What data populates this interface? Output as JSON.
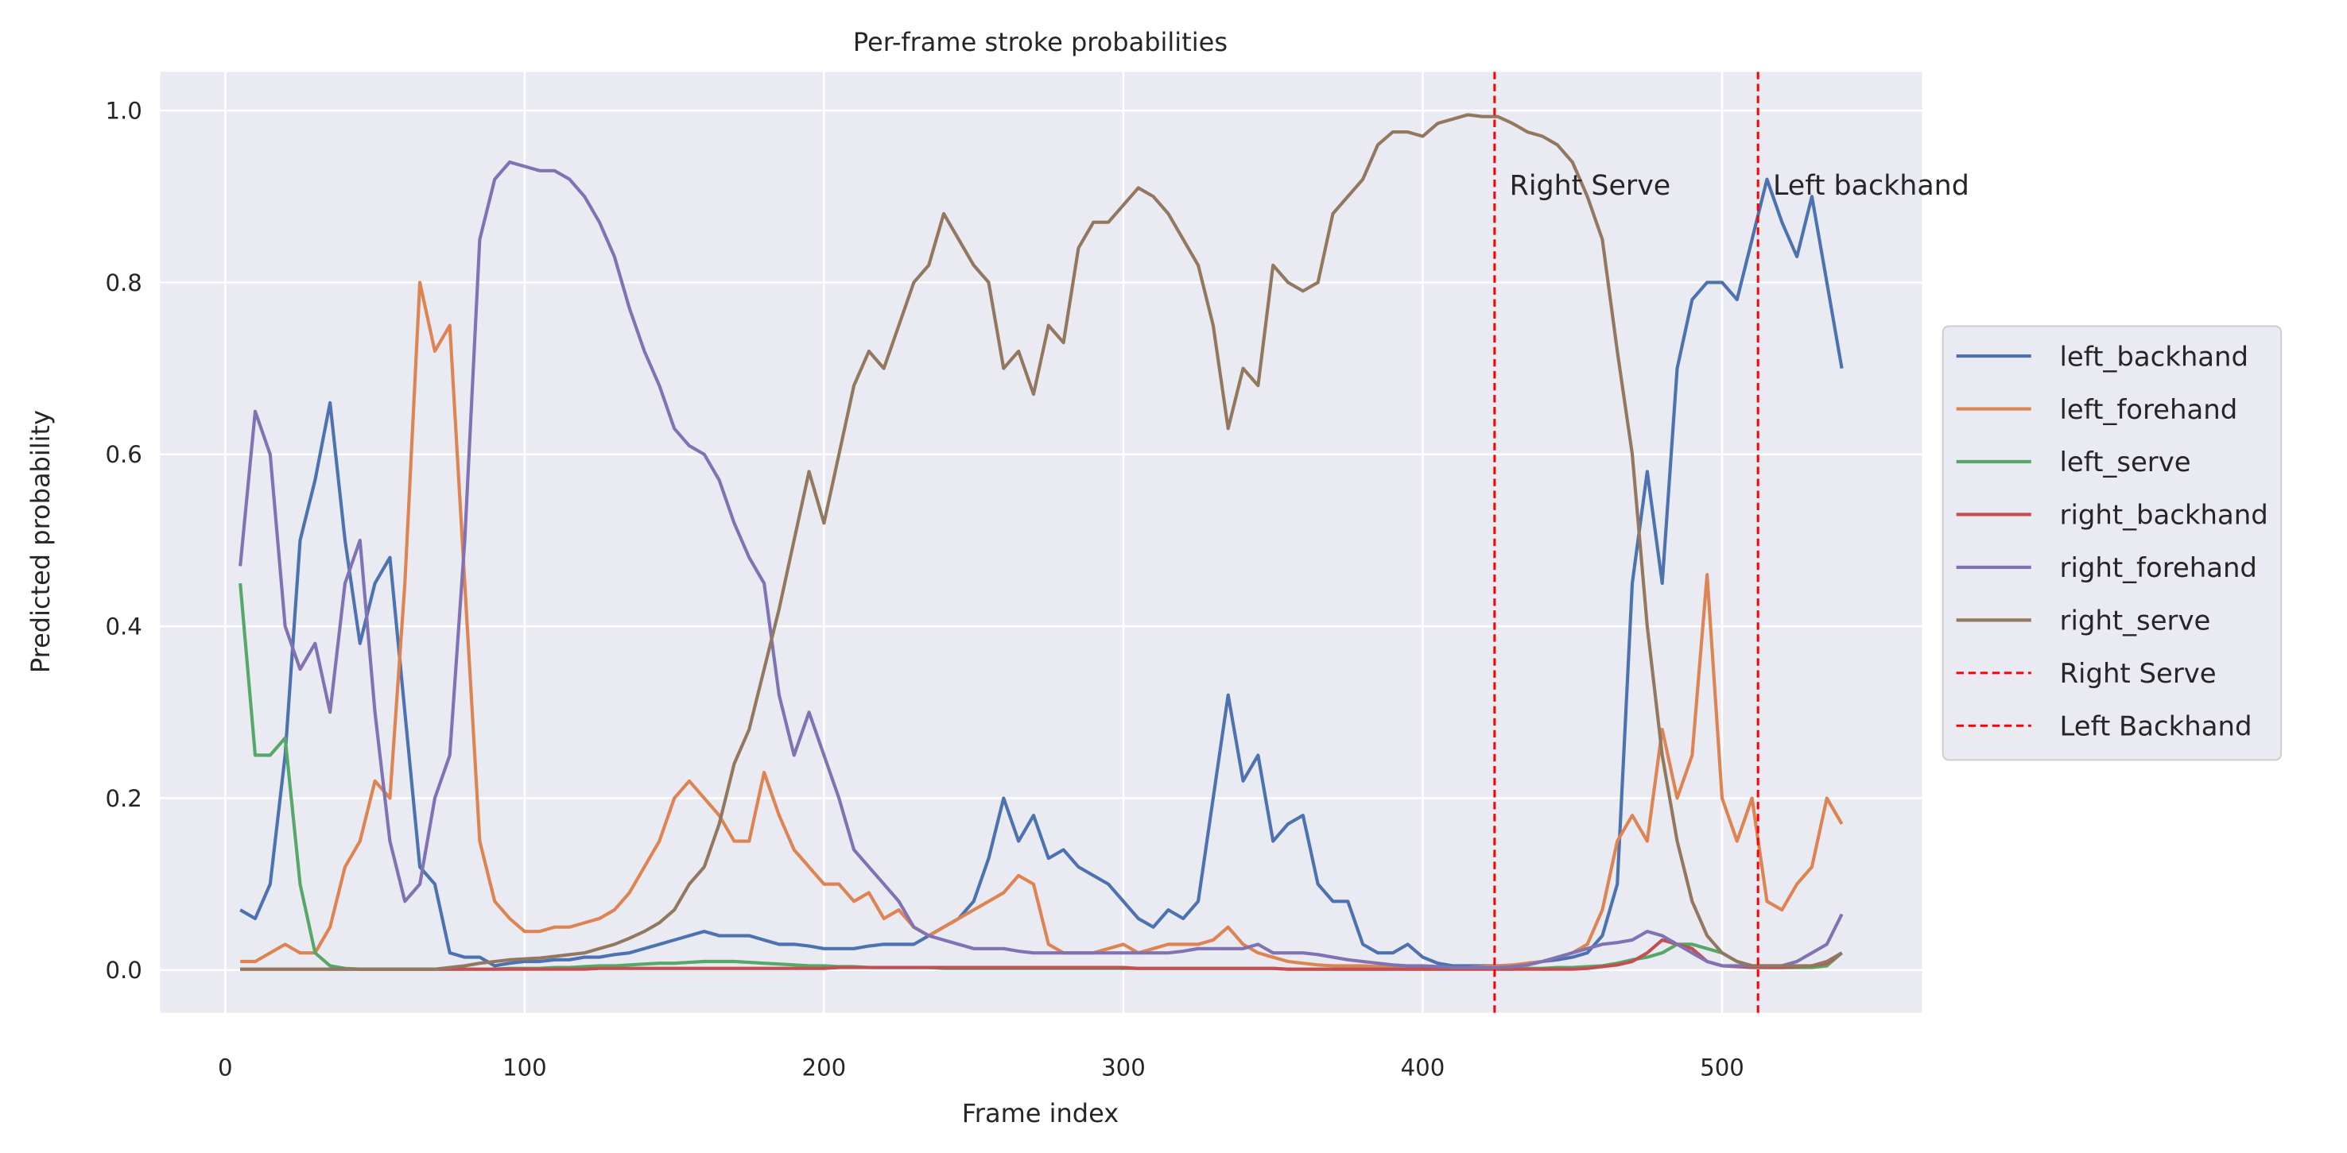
{
  "chart_data": {
    "type": "line",
    "title": "Per-frame stroke probabilities",
    "x_label": "Frame index",
    "y_label": "Predicted probability",
    "x": [
      5,
      10,
      15,
      20,
      25,
      30,
      35,
      40,
      45,
      50,
      55,
      60,
      65,
      70,
      75,
      80,
      85,
      90,
      95,
      100,
      105,
      110,
      115,
      120,
      125,
      130,
      135,
      140,
      145,
      150,
      155,
      160,
      165,
      170,
      175,
      180,
      185,
      190,
      195,
      200,
      205,
      210,
      215,
      220,
      225,
      230,
      235,
      240,
      245,
      250,
      255,
      260,
      265,
      270,
      275,
      280,
      285,
      290,
      295,
      300,
      305,
      310,
      315,
      320,
      325,
      330,
      335,
      340,
      345,
      350,
      355,
      360,
      365,
      370,
      375,
      380,
      385,
      390,
      395,
      400,
      405,
      410,
      415,
      420,
      425,
      430,
      435,
      440,
      445,
      450,
      455,
      460,
      465,
      470,
      475,
      480,
      485,
      490,
      495,
      500,
      505,
      510,
      515,
      520,
      525,
      530,
      535,
      540
    ],
    "series": [
      {
        "name": "left_backhand",
        "color": "#4c72b0",
        "values": [
          0.07,
          0.06,
          0.1,
          0.25,
          0.5,
          0.57,
          0.66,
          0.5,
          0.38,
          0.45,
          0.48,
          0.3,
          0.12,
          0.1,
          0.02,
          0.015,
          0.015,
          0.005,
          0.008,
          0.01,
          0.01,
          0.012,
          0.012,
          0.015,
          0.015,
          0.018,
          0.02,
          0.025,
          0.03,
          0.035,
          0.04,
          0.045,
          0.04,
          0.04,
          0.04,
          0.035,
          0.03,
          0.03,
          0.028,
          0.025,
          0.025,
          0.025,
          0.028,
          0.03,
          0.03,
          0.03,
          0.04,
          0.05,
          0.06,
          0.08,
          0.13,
          0.2,
          0.15,
          0.18,
          0.13,
          0.14,
          0.12,
          0.11,
          0.1,
          0.08,
          0.06,
          0.05,
          0.07,
          0.06,
          0.08,
          0.2,
          0.32,
          0.22,
          0.25,
          0.15,
          0.17,
          0.18,
          0.1,
          0.08,
          0.08,
          0.03,
          0.02,
          0.02,
          0.03,
          0.015,
          0.008,
          0.005,
          0.005,
          0.005,
          0.005,
          0.005,
          0.008,
          0.01,
          0.012,
          0.015,
          0.02,
          0.04,
          0.1,
          0.45,
          0.58,
          0.45,
          0.7,
          0.78,
          0.8,
          0.8,
          0.78,
          0.85,
          0.92,
          0.87,
          0.83,
          0.9,
          0.8,
          0.7
        ]
      },
      {
        "name": "left_forehand",
        "color": "#dd8452",
        "values": [
          0.01,
          0.01,
          0.02,
          0.03,
          0.02,
          0.02,
          0.05,
          0.12,
          0.15,
          0.22,
          0.2,
          0.45,
          0.8,
          0.72,
          0.75,
          0.45,
          0.15,
          0.08,
          0.06,
          0.045,
          0.045,
          0.05,
          0.05,
          0.055,
          0.06,
          0.07,
          0.09,
          0.12,
          0.15,
          0.2,
          0.22,
          0.2,
          0.18,
          0.15,
          0.15,
          0.23,
          0.18,
          0.14,
          0.12,
          0.1,
          0.1,
          0.08,
          0.09,
          0.06,
          0.07,
          0.05,
          0.04,
          0.05,
          0.06,
          0.07,
          0.08,
          0.09,
          0.11,
          0.1,
          0.03,
          0.02,
          0.02,
          0.02,
          0.025,
          0.03,
          0.02,
          0.025,
          0.03,
          0.03,
          0.03,
          0.035,
          0.05,
          0.03,
          0.02,
          0.015,
          0.01,
          0.008,
          0.006,
          0.005,
          0.005,
          0.005,
          0.004,
          0.004,
          0.004,
          0.004,
          0.003,
          0.003,
          0.003,
          0.004,
          0.005,
          0.006,
          0.008,
          0.01,
          0.015,
          0.02,
          0.03,
          0.07,
          0.15,
          0.18,
          0.15,
          0.28,
          0.2,
          0.25,
          0.46,
          0.2,
          0.15,
          0.2,
          0.08,
          0.07,
          0.1,
          0.12,
          0.2,
          0.17
        ]
      },
      {
        "name": "left_serve",
        "color": "#55a868",
        "values": [
          0.45,
          0.25,
          0.25,
          0.27,
          0.1,
          0.02,
          0.005,
          0.002,
          0.001,
          0.001,
          0.001,
          0.001,
          0.001,
          0.001,
          0.001,
          0.001,
          0.001,
          0.001,
          0.002,
          0.002,
          0.002,
          0.003,
          0.003,
          0.004,
          0.005,
          0.005,
          0.006,
          0.007,
          0.008,
          0.008,
          0.009,
          0.01,
          0.01,
          0.01,
          0.009,
          0.008,
          0.007,
          0.006,
          0.005,
          0.005,
          0.004,
          0.004,
          0.003,
          0.003,
          0.003,
          0.003,
          0.003,
          0.002,
          0.002,
          0.002,
          0.002,
          0.002,
          0.002,
          0.002,
          0.002,
          0.002,
          0.002,
          0.002,
          0.002,
          0.002,
          0.002,
          0.002,
          0.002,
          0.002,
          0.002,
          0.002,
          0.002,
          0.002,
          0.002,
          0.002,
          0.001,
          0.001,
          0.001,
          0.001,
          0.001,
          0.001,
          0.001,
          0.001,
          0.001,
          0.001,
          0.001,
          0.001,
          0.001,
          0.001,
          0.001,
          0.001,
          0.002,
          0.002,
          0.003,
          0.003,
          0.004,
          0.005,
          0.008,
          0.012,
          0.015,
          0.02,
          0.03,
          0.03,
          0.025,
          0.02,
          0.01,
          0.005,
          0.003,
          0.003,
          0.003,
          0.003,
          0.005,
          0.02
        ]
      },
      {
        "name": "right_backhand",
        "color": "#c44e52",
        "values": [
          0.001,
          0.001,
          0.001,
          0.001,
          0.001,
          0.001,
          0.001,
          0.001,
          0.001,
          0.001,
          0.001,
          0.001,
          0.001,
          0.001,
          0.001,
          0.001,
          0.001,
          0.001,
          0.001,
          0.001,
          0.001,
          0.001,
          0.001,
          0.001,
          0.002,
          0.002,
          0.002,
          0.002,
          0.002,
          0.002,
          0.002,
          0.002,
          0.002,
          0.002,
          0.002,
          0.002,
          0.002,
          0.002,
          0.002,
          0.002,
          0.003,
          0.003,
          0.003,
          0.003,
          0.003,
          0.003,
          0.003,
          0.003,
          0.003,
          0.003,
          0.003,
          0.003,
          0.003,
          0.003,
          0.003,
          0.003,
          0.003,
          0.003,
          0.003,
          0.003,
          0.002,
          0.002,
          0.002,
          0.002,
          0.002,
          0.002,
          0.002,
          0.002,
          0.002,
          0.002,
          0.001,
          0.001,
          0.001,
          0.001,
          0.001,
          0.001,
          0.001,
          0.001,
          0.001,
          0.001,
          0.001,
          0.001,
          0.001,
          0.001,
          0.001,
          0.001,
          0.001,
          0.001,
          0.001,
          0.001,
          0.002,
          0.004,
          0.006,
          0.01,
          0.02,
          0.035,
          0.03,
          0.025,
          0.01,
          0.005,
          0.004,
          0.003,
          0.003,
          0.003,
          0.004,
          0.005,
          0.008,
          0.02
        ]
      },
      {
        "name": "right_forehand",
        "color": "#8172b3",
        "values": [
          0.47,
          0.65,
          0.6,
          0.4,
          0.35,
          0.38,
          0.3,
          0.45,
          0.5,
          0.3,
          0.15,
          0.08,
          0.1,
          0.2,
          0.25,
          0.5,
          0.85,
          0.92,
          0.94,
          0.935,
          0.93,
          0.93,
          0.92,
          0.9,
          0.87,
          0.83,
          0.77,
          0.72,
          0.68,
          0.63,
          0.61,
          0.6,
          0.57,
          0.52,
          0.48,
          0.45,
          0.32,
          0.25,
          0.3,
          0.25,
          0.2,
          0.14,
          0.12,
          0.1,
          0.08,
          0.05,
          0.04,
          0.035,
          0.03,
          0.025,
          0.025,
          0.025,
          0.022,
          0.02,
          0.02,
          0.02,
          0.02,
          0.02,
          0.02,
          0.02,
          0.02,
          0.02,
          0.02,
          0.022,
          0.025,
          0.025,
          0.025,
          0.025,
          0.03,
          0.02,
          0.02,
          0.02,
          0.018,
          0.015,
          0.012,
          0.01,
          0.008,
          0.006,
          0.005,
          0.005,
          0.004,
          0.003,
          0.003,
          0.003,
          0.003,
          0.004,
          0.006,
          0.01,
          0.015,
          0.02,
          0.025,
          0.03,
          0.032,
          0.035,
          0.045,
          0.04,
          0.03,
          0.02,
          0.01,
          0.005,
          0.005,
          0.005,
          0.005,
          0.005,
          0.01,
          0.02,
          0.03,
          0.065
        ]
      },
      {
        "name": "right_serve",
        "color": "#937860",
        "values": [
          0.001,
          0.001,
          0.001,
          0.001,
          0.001,
          0.001,
          0.001,
          0.001,
          0.001,
          0.001,
          0.001,
          0.001,
          0.001,
          0.001,
          0.003,
          0.005,
          0.008,
          0.01,
          0.012,
          0.013,
          0.014,
          0.016,
          0.018,
          0.02,
          0.025,
          0.03,
          0.037,
          0.045,
          0.055,
          0.07,
          0.1,
          0.12,
          0.17,
          0.24,
          0.28,
          0.35,
          0.42,
          0.5,
          0.58,
          0.52,
          0.6,
          0.68,
          0.72,
          0.7,
          0.75,
          0.8,
          0.82,
          0.88,
          0.85,
          0.82,
          0.8,
          0.7,
          0.72,
          0.67,
          0.75,
          0.73,
          0.84,
          0.87,
          0.87,
          0.89,
          0.91,
          0.9,
          0.88,
          0.85,
          0.82,
          0.75,
          0.63,
          0.7,
          0.68,
          0.82,
          0.8,
          0.79,
          0.8,
          0.88,
          0.9,
          0.92,
          0.96,
          0.975,
          0.975,
          0.97,
          0.985,
          0.99,
          0.995,
          0.993,
          0.993,
          0.985,
          0.975,
          0.97,
          0.96,
          0.94,
          0.9,
          0.85,
          0.72,
          0.6,
          0.4,
          0.25,
          0.15,
          0.08,
          0.04,
          0.02,
          0.01,
          0.005,
          0.005,
          0.005,
          0.005,
          0.005,
          0.01,
          0.02
        ]
      }
    ],
    "vlines": [
      {
        "x": 424,
        "color": "red",
        "label": "Right Serve",
        "annotation": "Right Serve"
      },
      {
        "x": 512,
        "color": "red",
        "label": "Left Backhand",
        "annotation": "Left backhand"
      }
    ],
    "xlim": [
      -21.75,
      566.75
    ],
    "ylim": [
      -0.0497,
      1.045
    ],
    "xticks": [
      0,
      100,
      200,
      300,
      400,
      500
    ],
    "yticks": [
      {
        "value": 0,
        "label": "0.0"
      },
      0.2,
      0.4,
      0.6,
      0.8,
      {
        "value": 1,
        "label": "1.0"
      }
    ],
    "grid": true,
    "legend": "right"
  }
}
